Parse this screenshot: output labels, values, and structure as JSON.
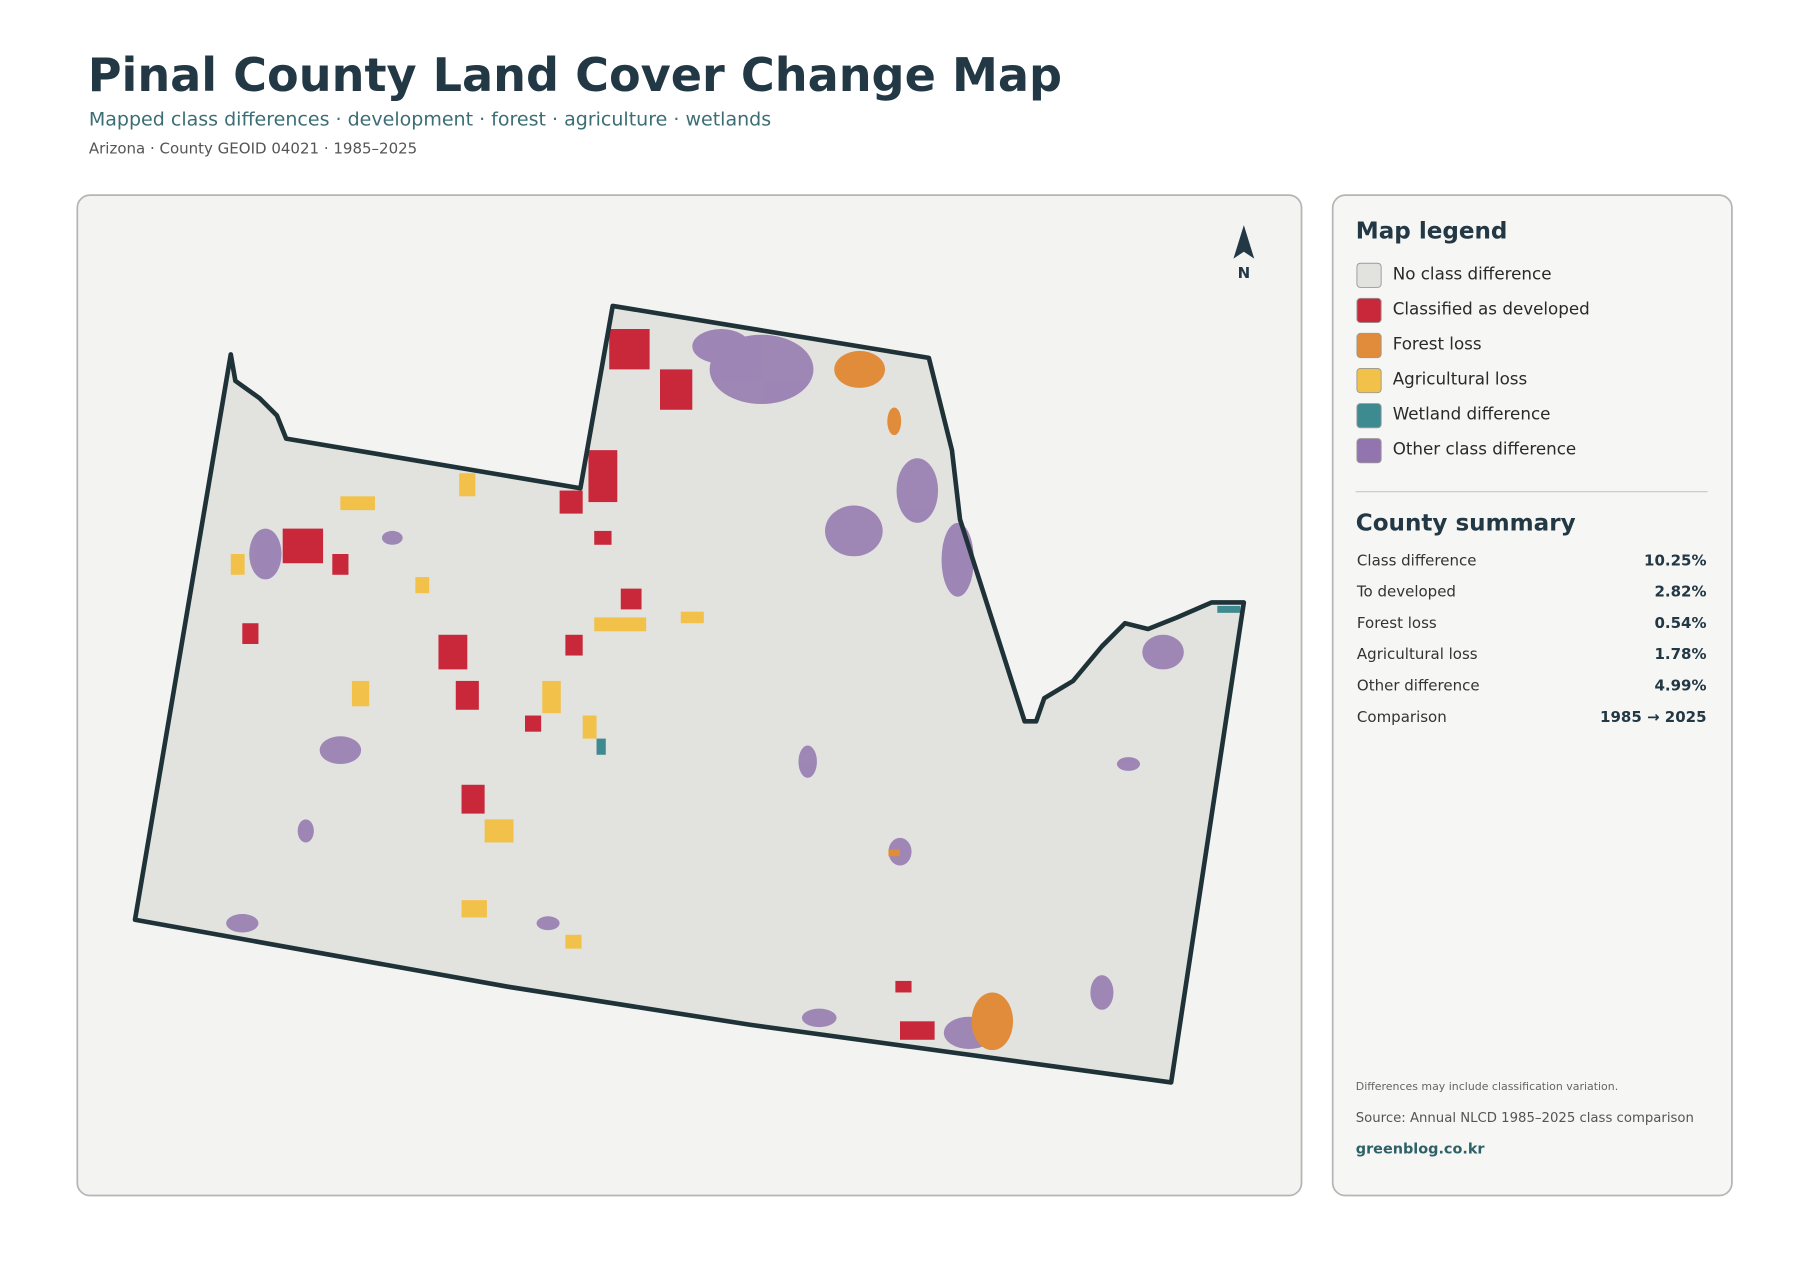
{
  "header": {
    "title": "Pinal County Land Cover Change Map",
    "subtitle": "Mapped class differences · development · forest · agriculture · wetlands",
    "meta": "Arizona · County GEOID 04021 · 1985–2025"
  },
  "map": {
    "north": "N"
  },
  "legend": {
    "title": "Map legend",
    "items": [
      "No class difference",
      "Classified as developed",
      "Forest loss",
      "Agricultural loss",
      "Wetland difference",
      "Other class difference"
    ]
  },
  "summary": {
    "title": "County summary",
    "rows": [
      [
        "Class difference",
        "10.25%"
      ],
      [
        "To developed",
        "2.82%"
      ],
      [
        "Forest loss",
        "0.54%"
      ],
      [
        "Agricultural loss",
        "1.78%"
      ],
      [
        "Other difference",
        "4.99%"
      ],
      [
        "Comparison",
        "1985 → 2025"
      ]
    ]
  },
  "footer": {
    "note": "Differences may include classification variation.",
    "source": "Source: Annual NLCD 1985–2025 class comparison",
    "site": "greenblog.co.kr"
  }
}
